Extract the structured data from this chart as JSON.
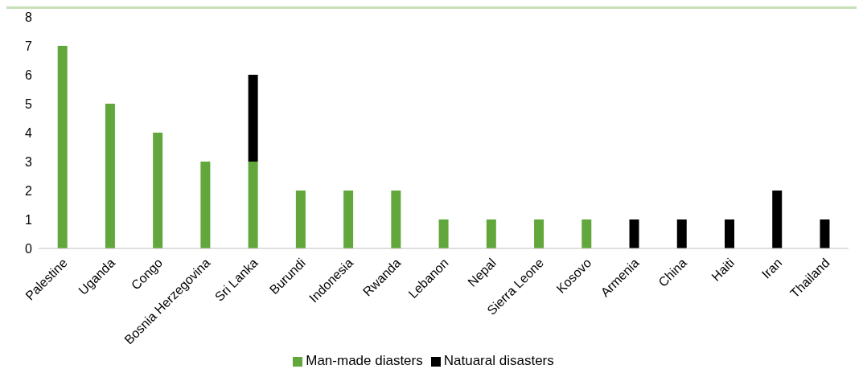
{
  "chart_data": {
    "type": "bar",
    "stacked": true,
    "categories": [
      "Palestine",
      "Uganda",
      "Congo",
      "Bosnia Herzegovina",
      "Sri Lanka",
      "Burundi",
      "Indonesia",
      "Rwanda",
      "Lebanon",
      "Nepal",
      "Sierra Leone",
      "Kosovo",
      "Armenia",
      "China",
      "Haiti",
      "Iran",
      "Thailand"
    ],
    "series": [
      {
        "name": "Man-made diasters",
        "color": "#62a73b",
        "values": [
          7,
          5,
          4,
          3,
          3,
          2,
          2,
          2,
          1,
          1,
          1,
          1,
          null,
          null,
          null,
          null,
          null
        ]
      },
      {
        "name": "Natuaral disasters",
        "color": "#000000",
        "values": [
          null,
          null,
          null,
          null,
          3,
          null,
          null,
          null,
          null,
          null,
          null,
          null,
          1,
          1,
          1,
          2,
          1
        ]
      }
    ],
    "ylim": [
      0,
      8
    ],
    "yticks": [
      0,
      1,
      2,
      3,
      4,
      5,
      6,
      7,
      8
    ],
    "grid": false,
    "legend": "bottom"
  }
}
